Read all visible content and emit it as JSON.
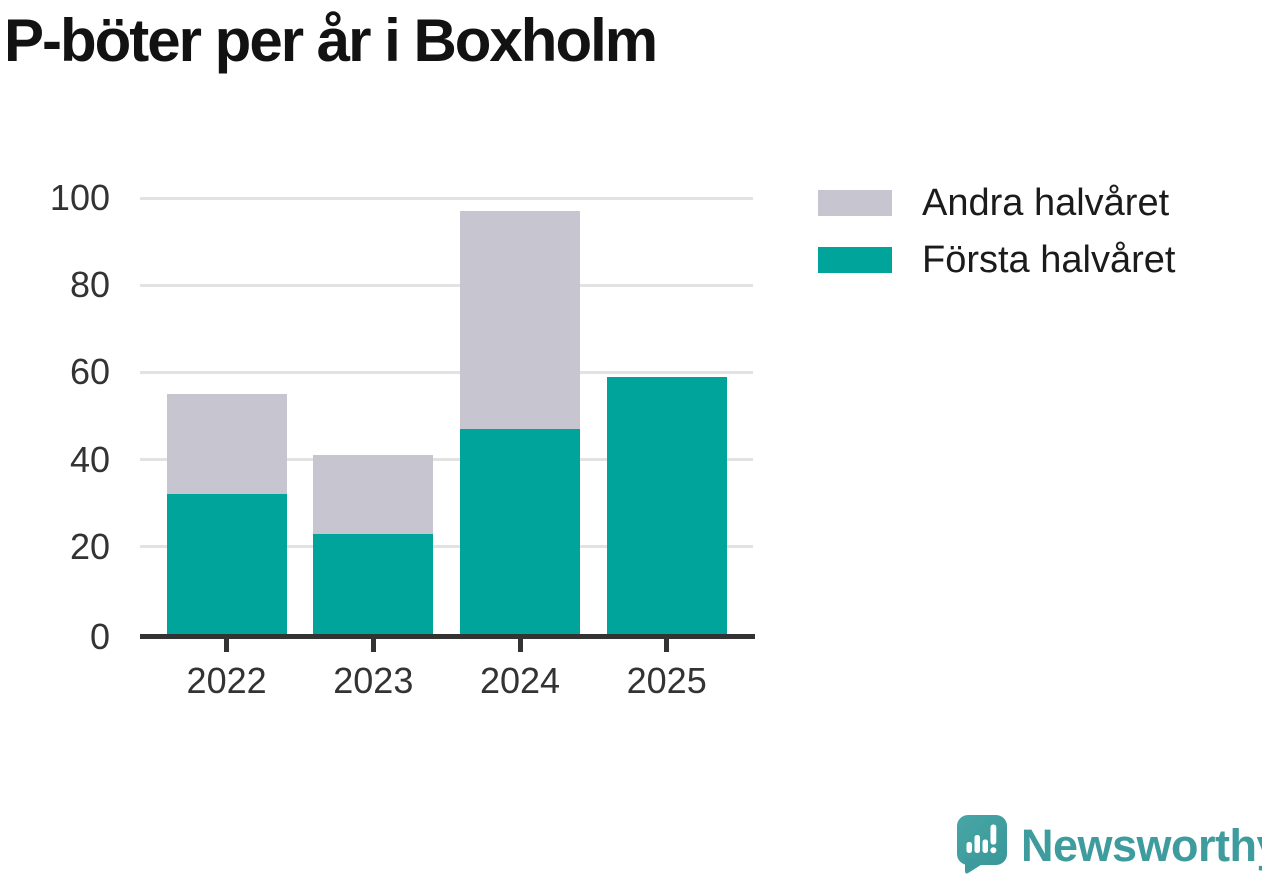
{
  "title": "P-böter per år i Boxholm",
  "chart_data": {
    "type": "bar",
    "stacked": true,
    "title": "P-böter per år i Boxholm",
    "categories": [
      "2022",
      "2023",
      "2024",
      "2025"
    ],
    "series": [
      {
        "name": "Första halvåret",
        "color": "#00a49b",
        "values": [
          32,
          23,
          47,
          59
        ]
      },
      {
        "name": "Andra halvåret",
        "color": "#c7c5cf",
        "values": [
          23,
          18,
          50,
          0
        ]
      }
    ],
    "totals": [
      55,
      41,
      97,
      59
    ],
    "yticks": [
      0,
      20,
      40,
      60,
      80,
      100
    ],
    "ylim": [
      0,
      100
    ],
    "xlabel": "",
    "ylabel": "",
    "grid": "horizontal",
    "gridline_color": "#e2e2e2",
    "axis_color": "#333333",
    "tick_label_color": "#333333",
    "legend_position": "top-right"
  },
  "legend": {
    "items": [
      {
        "label": "Andra halvåret",
        "color": "#c7c5cf"
      },
      {
        "label": "Första halvåret",
        "color": "#00a49b"
      }
    ]
  },
  "footer": {
    "brand": "Newsworthy",
    "brand_color": "#3e9c9e",
    "logo_icon": "newsworthy-speech-bubble-bar-chart-icon"
  }
}
